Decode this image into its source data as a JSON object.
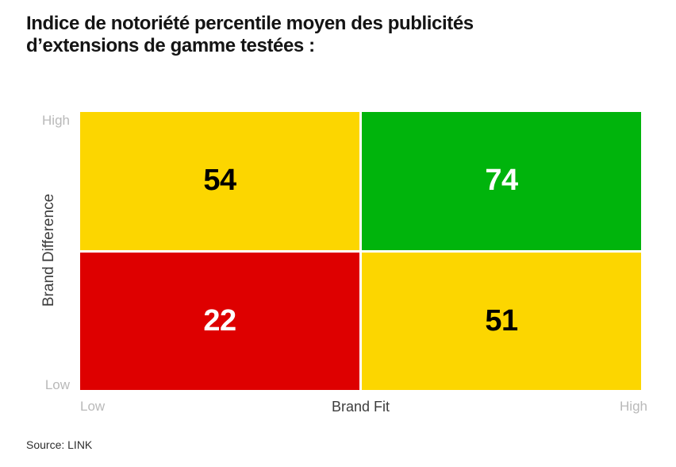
{
  "title": {
    "line1": "Indice de notoriété percentile moyen des publicités",
    "line2": "d’extensions de gamme testées :"
  },
  "y_axis": {
    "label": "Brand Difference",
    "top_tick": "High",
    "bottom_tick": "Low"
  },
  "x_axis": {
    "label": "Brand Fit",
    "left_tick": "Low",
    "right_tick": "High"
  },
  "source": "Source: LINK",
  "colors": {
    "yellow": "#fcd600",
    "green": "#00b40c",
    "red": "#de0000",
    "tick_gray": "#b9b9b9",
    "axis_label": "#3d3d3d",
    "title_text": "#141414"
  },
  "chart_data": {
    "type": "heatmap",
    "title": "Indice de notoriété percentile moyen des publicités d’extensions de gamme testées :",
    "xlabel": "Brand Fit",
    "ylabel": "Brand Difference",
    "x_categories": [
      "Low",
      "High"
    ],
    "y_categories": [
      "High",
      "Low"
    ],
    "legend_position": "none",
    "grid": false,
    "cells": [
      {
        "row": "High",
        "col": "Low",
        "value": 54,
        "color": "#fcd600",
        "text_color": "#000000"
      },
      {
        "row": "High",
        "col": "High",
        "value": 74,
        "color": "#00b40c",
        "text_color": "#ffffff"
      },
      {
        "row": "Low",
        "col": "Low",
        "value": 22,
        "color": "#de0000",
        "text_color": "#ffffff"
      },
      {
        "row": "Low",
        "col": "High",
        "value": 51,
        "color": "#fcd600",
        "text_color": "#000000"
      }
    ]
  }
}
